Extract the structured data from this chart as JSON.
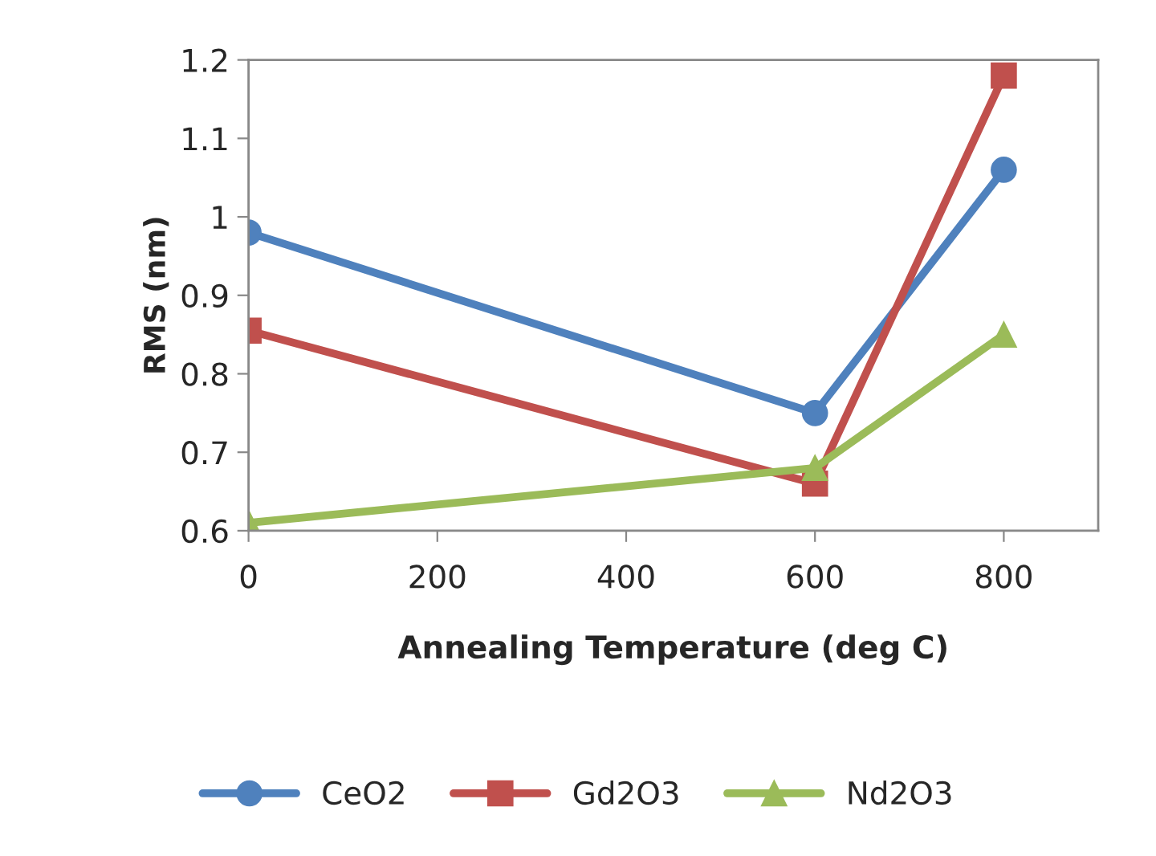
{
  "chart_data": {
    "type": "line",
    "xlabel": "Annealing Temperature (deg C)",
    "ylabel": "RMS (nm)",
    "x": [
      0,
      600,
      800
    ],
    "series": [
      {
        "name": "CeO2",
        "color": "#4f81bd",
        "marker": "circle",
        "values": [
          0.98,
          0.75,
          1.06
        ]
      },
      {
        "name": "Gd2O3",
        "color": "#c0504d",
        "marker": "square",
        "values": [
          0.855,
          0.66,
          1.18
        ]
      },
      {
        "name": "Nd2O3",
        "color": "#9bbb59",
        "marker": "triangle",
        "values": [
          0.61,
          0.68,
          0.85
        ]
      }
    ],
    "xlim": [
      0,
      900
    ],
    "xticks": [
      0,
      200,
      400,
      600,
      800
    ],
    "ylim": [
      0.6,
      1.2
    ],
    "yticks": [
      0.6,
      0.7,
      0.8,
      0.9,
      1,
      1.1,
      1.2
    ],
    "grid": false,
    "legend": "bottom",
    "line_style": "solid"
  }
}
